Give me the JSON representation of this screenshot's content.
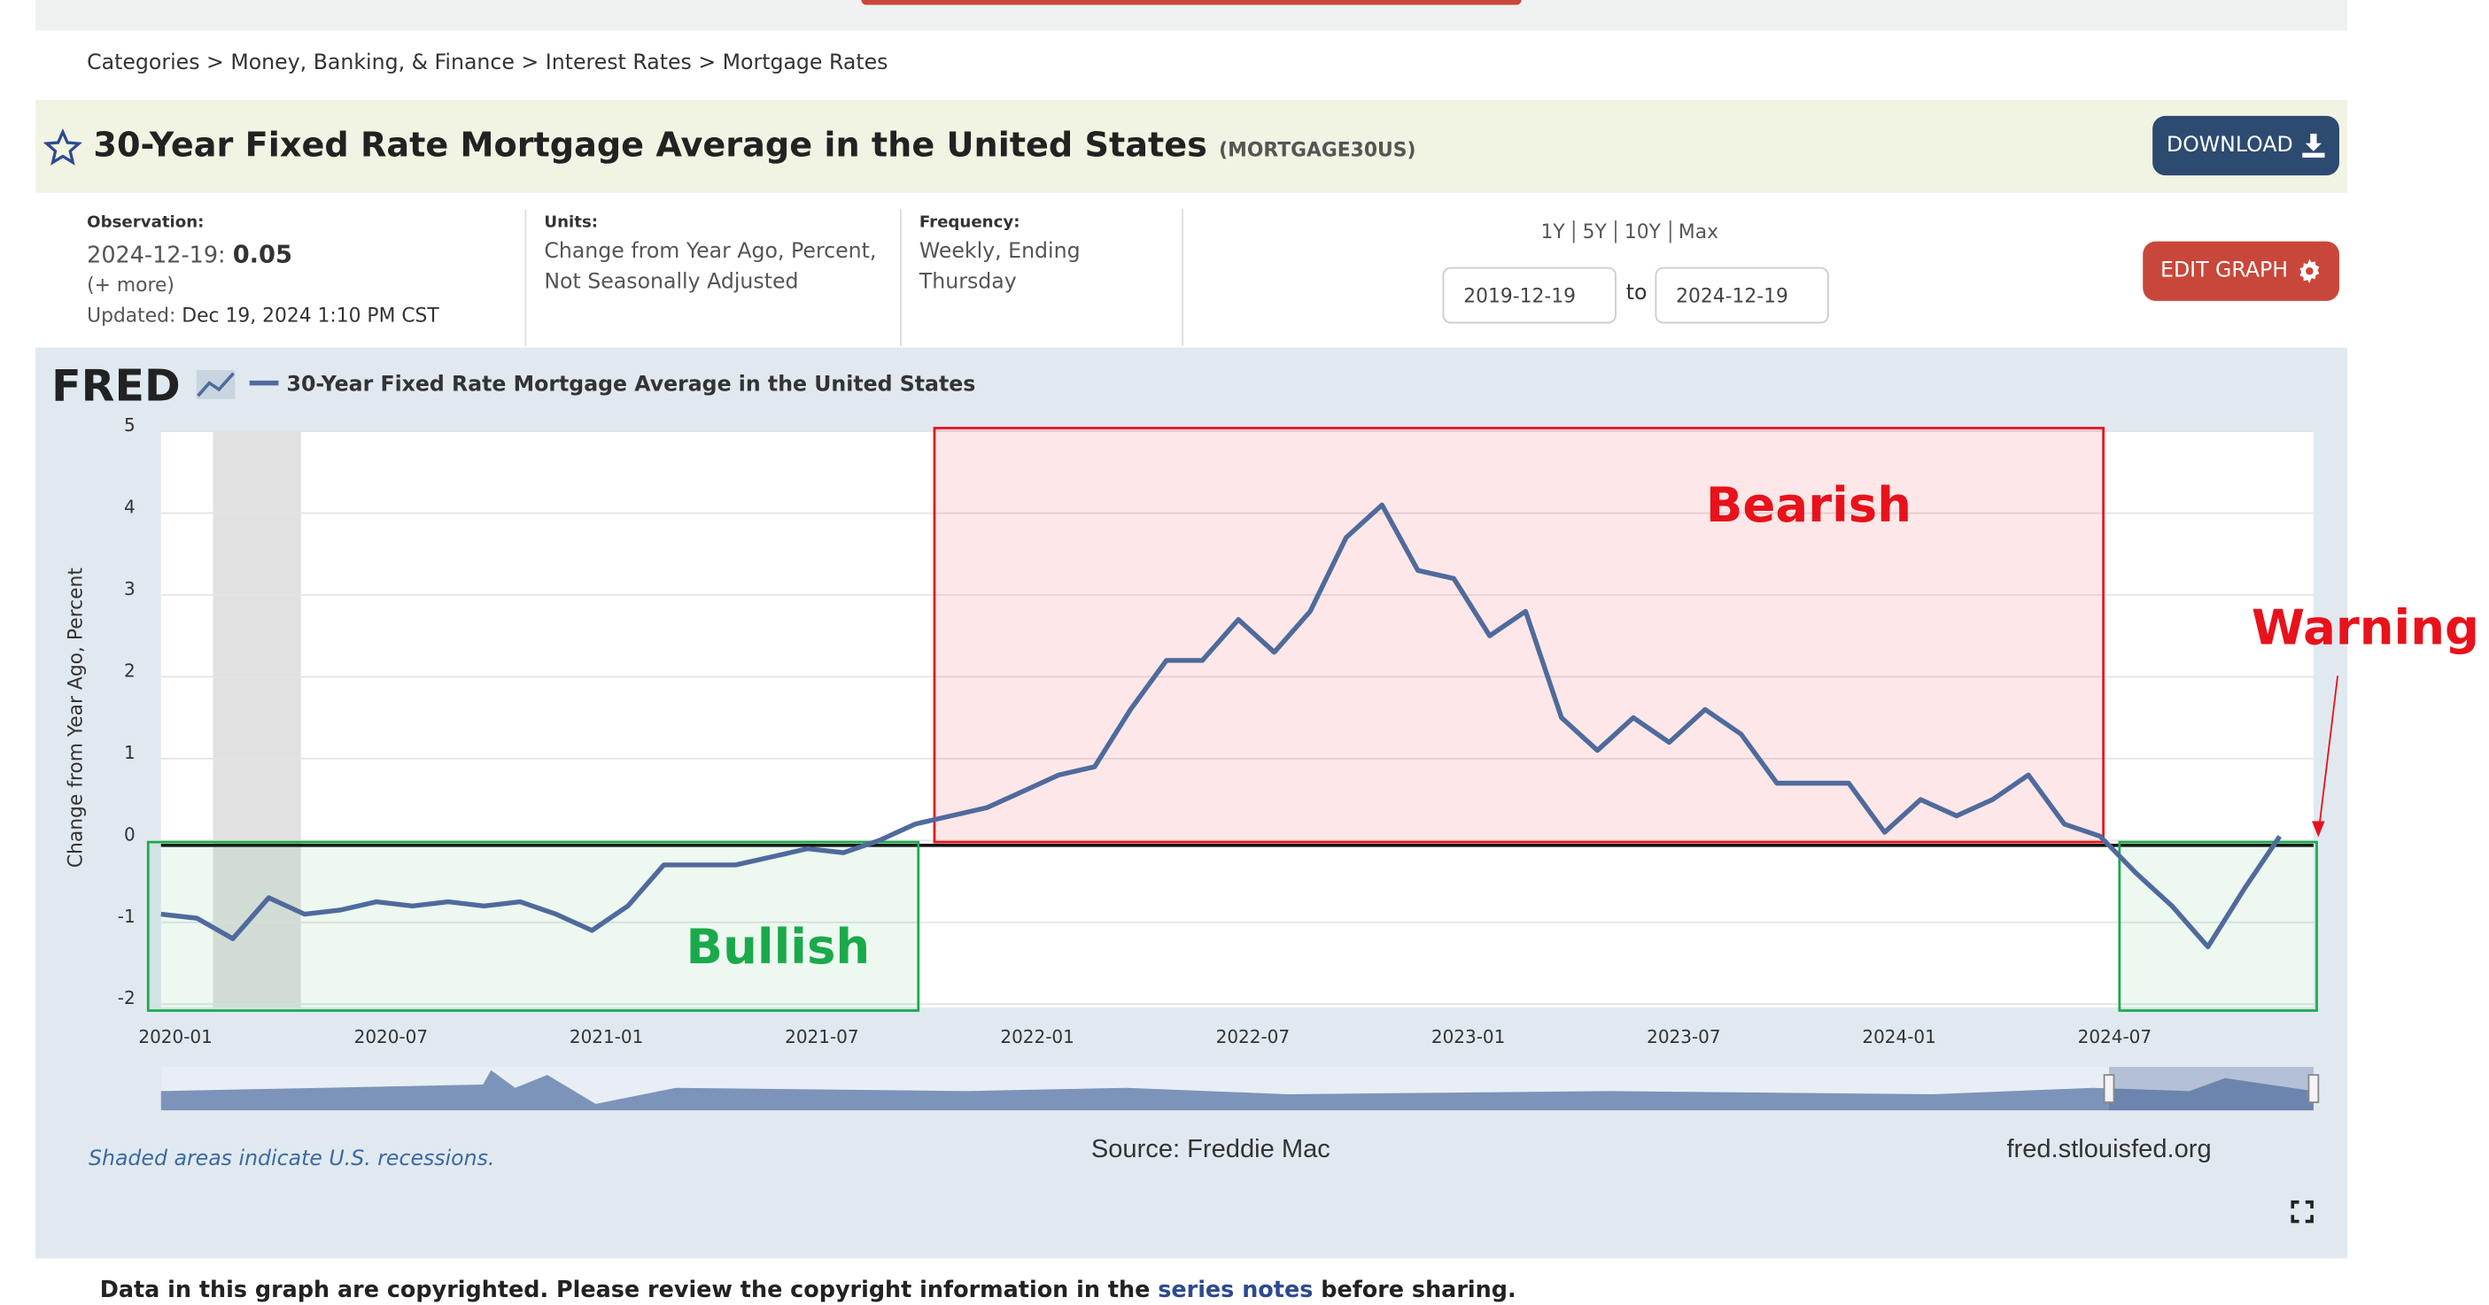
{
  "nav": {
    "breadcrumb": "Categories > Money, Banking, & Finance > Interest Rates > Mortgage Rates"
  },
  "header": {
    "title": "30-Year Fixed Rate Mortgage Average in the United States",
    "series_id": "(MORTGAGE30US)",
    "download": "DOWNLOAD"
  },
  "meta": {
    "observation_label": "Observation:",
    "observation_date": "2024-12-19:",
    "observation_value": "0.05",
    "more": "(+ more)",
    "updated_label": "Updated:",
    "updated": "Dec 19, 2024 1:10 PM CST",
    "units_label": "Units:",
    "units": "Change from Year Ago, Percent, Not Seasonally Adjusted",
    "frequency_label": "Frequency:",
    "frequency": "Weekly, Ending Thursday"
  },
  "controls": {
    "ranges": [
      "1Y",
      "5Y",
      "10Y",
      "Max"
    ],
    "start": "2019-12-19",
    "to": "to",
    "end": "2024-12-19",
    "edit": "EDIT GRAPH"
  },
  "chart_data": {
    "type": "line",
    "logo": "FRED",
    "y_label": "Change from Year Ago, Percent",
    "x": [
      "2020-01",
      "2020-02",
      "2020-03",
      "2020-04",
      "2020-05",
      "2020-06",
      "2020-07",
      "2020-08",
      "2020-09",
      "2020-10",
      "2020-11",
      "2020-12",
      "2021-01",
      "2021-02",
      "2021-03",
      "2021-04",
      "2021-05",
      "2021-06",
      "2021-07",
      "2021-08",
      "2021-09",
      "2021-10",
      "2021-11",
      "2021-12",
      "2022-01",
      "2022-02",
      "2022-03",
      "2022-04",
      "2022-05",
      "2022-06",
      "2022-07",
      "2022-08",
      "2022-09",
      "2022-10",
      "2022-11",
      "2022-12",
      "2023-01",
      "2023-02",
      "2023-03",
      "2023-04",
      "2023-05",
      "2023-06",
      "2023-07",
      "2023-08",
      "2023-09",
      "2023-10",
      "2023-11",
      "2023-12",
      "2024-01",
      "2024-02",
      "2024-03",
      "2024-04",
      "2024-05",
      "2024-06",
      "2024-07",
      "2024-08",
      "2024-09",
      "2024-10",
      "2024-11",
      "2024-12"
    ],
    "series": [
      {
        "name": "30-Year Fixed Rate Mortgage Average in the United States",
        "color": "#4f6a9c",
        "values": [
          -0.9,
          -0.95,
          -1.2,
          -0.7,
          -0.9,
          -0.85,
          -0.75,
          -0.8,
          -0.75,
          -0.8,
          -0.75,
          -0.9,
          -1.1,
          -0.8,
          -0.3,
          -0.3,
          -0.3,
          -0.2,
          -0.1,
          -0.15,
          0,
          0.2,
          0.3,
          0.4,
          0.6,
          0.8,
          0.9,
          1.6,
          2.2,
          2.2,
          2.7,
          2.3,
          2.8,
          3.7,
          4.1,
          3.3,
          3.2,
          2.5,
          2.8,
          1.5,
          1.1,
          1.5,
          1.2,
          1.6,
          1.3,
          0.7,
          0.7,
          0.7,
          0.1,
          0.5,
          0.3,
          0.5,
          0.8,
          0.2,
          0.05,
          -0.4,
          -0.8,
          -1.3,
          -0.6,
          0.05
        ]
      }
    ],
    "xlim": [
      "2020-01",
      "2024-12"
    ],
    "xticks": [
      "2020-01",
      "2020-07",
      "2021-01",
      "2021-07",
      "2022-01",
      "2022-07",
      "2023-01",
      "2023-07",
      "2024-01",
      "2024-07"
    ],
    "ylim": [
      -2,
      5
    ],
    "yticks": [
      -2,
      -1,
      0,
      1,
      2,
      3,
      4,
      5
    ],
    "grid": true,
    "recessions": [
      [
        "2020-02",
        "2020-04"
      ]
    ],
    "annotations": [
      {
        "text": "Bullish",
        "x": [
          "2020-01",
          "2021-10"
        ],
        "y": [
          -2,
          0
        ],
        "color": "#1aaa4b"
      },
      {
        "text": "Bearish",
        "x": [
          "2021-10",
          "2024-07"
        ],
        "y": [
          0,
          5
        ],
        "color": "#e8121b"
      },
      {
        "text": "Warning",
        "x": [
          "2024-07",
          "2024-12"
        ],
        "y": [
          -2,
          0
        ],
        "color": "#1aaa4b"
      }
    ]
  },
  "footer": {
    "recession_note": "Shaded areas indicate U.S. recessions.",
    "source": "Source: Freddie Mac",
    "site": "fred.stlouisfed.org",
    "copyright_a": "Data in this graph are copyrighted. Please review the copyright information in the",
    "copyright_link": "series notes",
    "copyright_b": "before sharing."
  }
}
